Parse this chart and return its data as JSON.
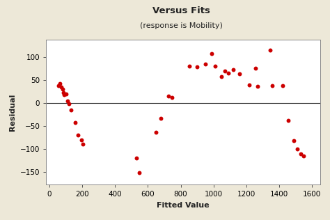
{
  "title": "Versus Fits",
  "subtitle": "(response is Mobility)",
  "xlabel": "Fitted Value",
  "ylabel": "Residual",
  "background_color": "#ede8d8",
  "plot_background": "#ffffff",
  "dot_color": "#cc0000",
  "xlim": [
    -20,
    1650
  ],
  "ylim": [
    -178,
    138
  ],
  "xticks": [
    0,
    200,
    400,
    600,
    800,
    1000,
    1200,
    1400,
    1600
  ],
  "yticks": [
    -150,
    -100,
    -50,
    0,
    50,
    100
  ],
  "x": [
    55,
    65,
    72,
    80,
    85,
    90,
    100,
    110,
    120,
    130,
    155,
    175,
    195,
    205,
    530,
    548,
    650,
    680,
    725,
    745,
    855,
    900,
    950,
    990,
    1010,
    1050,
    1070,
    1090,
    1120,
    1160,
    1220,
    1255,
    1270,
    1345,
    1360,
    1420,
    1455,
    1490,
    1510,
    1530,
    1548
  ],
  "y": [
    38,
    42,
    35,
    30,
    22,
    18,
    20,
    5,
    -2,
    -15,
    -43,
    -70,
    -80,
    -90,
    -120,
    -152,
    -63,
    -34,
    15,
    12,
    80,
    78,
    85,
    107,
    80,
    58,
    70,
    65,
    72,
    63,
    40,
    75,
    37,
    115,
    38,
    38,
    -38,
    -82,
    -100,
    -110,
    -115
  ],
  "title_fontsize": 9.5,
  "subtitle_fontsize": 8,
  "label_fontsize": 8,
  "tick_fontsize": 7.5
}
